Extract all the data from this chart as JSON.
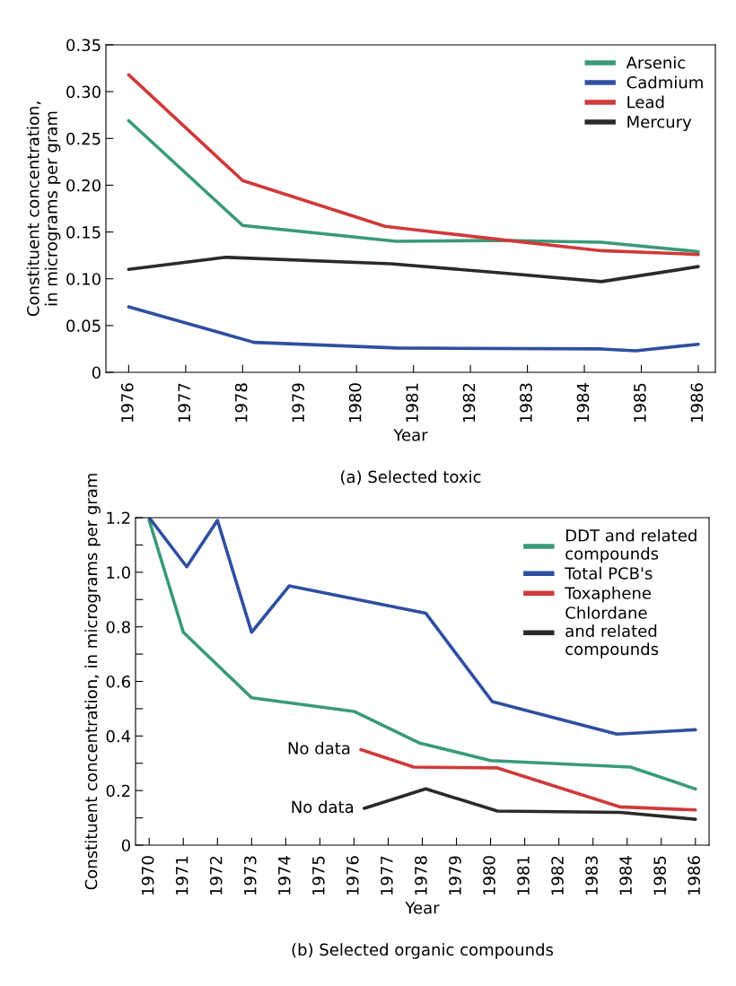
{
  "chart_data": [
    {
      "type": "line",
      "xlabel": "Year",
      "ylabel": "Constituent concentration,\nin micrograms per gram",
      "annotations": [
        "(a) Selected toxic"
      ],
      "xlim": [
        1975.6,
        1986.3
      ],
      "xticks": [
        1976,
        1977,
        1978,
        1979,
        1980,
        1981,
        1982,
        1983,
        1984,
        1985,
        1986
      ],
      "ylim": [
        0,
        0.35
      ],
      "yticks": [
        0,
        0.05,
        {
          "value": 0.1,
          "label": "0.10"
        },
        0.15,
        {
          "value": 0.2,
          "label": "0.20"
        },
        0.25,
        {
          "value": 0.3,
          "label": "0.30"
        },
        0.35
      ],
      "grid": false,
      "legend": "top right",
      "marker": "none",
      "line_style": "solid",
      "series": [
        {
          "name": "Arsenic",
          "color": "#3a9a78",
          "x": [
            1976,
            1978,
            1980.7,
            1982.6,
            1984.3,
            1986
          ],
          "values": [
            0.269,
            0.157,
            0.14,
            0.141,
            0.139,
            0.129
          ]
        },
        {
          "name": "Cadmium",
          "color": "#2f4fa0",
          "x": [
            1976,
            1978.2,
            1980.7,
            1984.3,
            1984.9,
            1986
          ],
          "values": [
            0.07,
            0.032,
            0.026,
            0.025,
            0.023,
            0.03
          ]
        },
        {
          "name": "Lead",
          "color": "#d03a3a",
          "x": [
            1976,
            1978,
            1980.5,
            1982.5,
            1984.3,
            1986
          ],
          "values": [
            0.318,
            0.205,
            0.156,
            0.142,
            0.13,
            0.126
          ]
        },
        {
          "name": "Mercury",
          "color": "#2a2a2a",
          "x": [
            1976,
            1977.7,
            1980.6,
            1982.6,
            1984.3,
            1986
          ],
          "values": [
            0.11,
            0.123,
            0.116,
            0.106,
            0.097,
            0.113
          ]
        }
      ]
    },
    {
      "type": "line",
      "xlabel": "Year",
      "ylabel": "Constituent concentration, in micrograms per gram",
      "annotations": [
        {
          "text": "No data",
          "x": 1976.2,
          "y": 0.35
        },
        {
          "text": "No data",
          "x": 1976.3,
          "y": 0.135
        },
        "(b) Selected organic compounds"
      ],
      "xlim": [
        1969.6,
        1986.4
      ],
      "xticks": [
        1970,
        1971,
        1972,
        1973,
        1974,
        1975,
        1976,
        1977,
        1978,
        1979,
        1980,
        1981,
        1982,
        1983,
        1984,
        1985,
        1986
      ],
      "ylim": [
        0,
        1.2
      ],
      "yticks": [
        0,
        {
          "value": 0.1,
          "label": null
        },
        0.2,
        {
          "value": 0.3,
          "label": null
        },
        0.4,
        {
          "value": 0.5,
          "label": null
        },
        0.6,
        {
          "value": 0.7,
          "label": null
        },
        0.8,
        {
          "value": 0.9,
          "label": null
        },
        {
          "value": 1.0,
          "label": "1.0"
        },
        {
          "value": 1.1,
          "label": null
        },
        1.2
      ],
      "grid": false,
      "legend": "top right",
      "marker": "none",
      "line_style": "solid",
      "series": [
        {
          "name": "DDT and related\ncompounds",
          "color": "#3a9a78",
          "x": [
            1970,
            1971,
            1973,
            1976,
            1977.9,
            1980,
            1984.1,
            1986
          ],
          "values": [
            1.19,
            0.78,
            0.54,
            0.49,
            0.375,
            0.31,
            0.286,
            0.206
          ]
        },
        {
          "name": "Total PCB's",
          "color": "#2f4fa0",
          "x": [
            1970,
            1971.1,
            1972,
            1973,
            1974.1,
            1978.1,
            1980.05,
            1983.7,
            1986
          ],
          "values": [
            1.2,
            1.02,
            1.19,
            0.78,
            0.95,
            0.85,
            0.526,
            0.407,
            0.423
          ]
        },
        {
          "name": "Toxaphene",
          "color": "#d03a3a",
          "x": [
            1976.2,
            1977.75,
            1980.2,
            1983.8,
            1986
          ],
          "values": [
            0.35,
            0.286,
            0.283,
            0.14,
            0.129
          ]
        },
        {
          "name": "Chlordane\nand related\ncompounds",
          "color": "#2a2a2a",
          "x": [
            1976.3,
            1978.1,
            1980.2,
            1983.8,
            1986
          ],
          "values": [
            0.135,
            0.206,
            0.125,
            0.12,
            0.095
          ]
        }
      ]
    }
  ]
}
